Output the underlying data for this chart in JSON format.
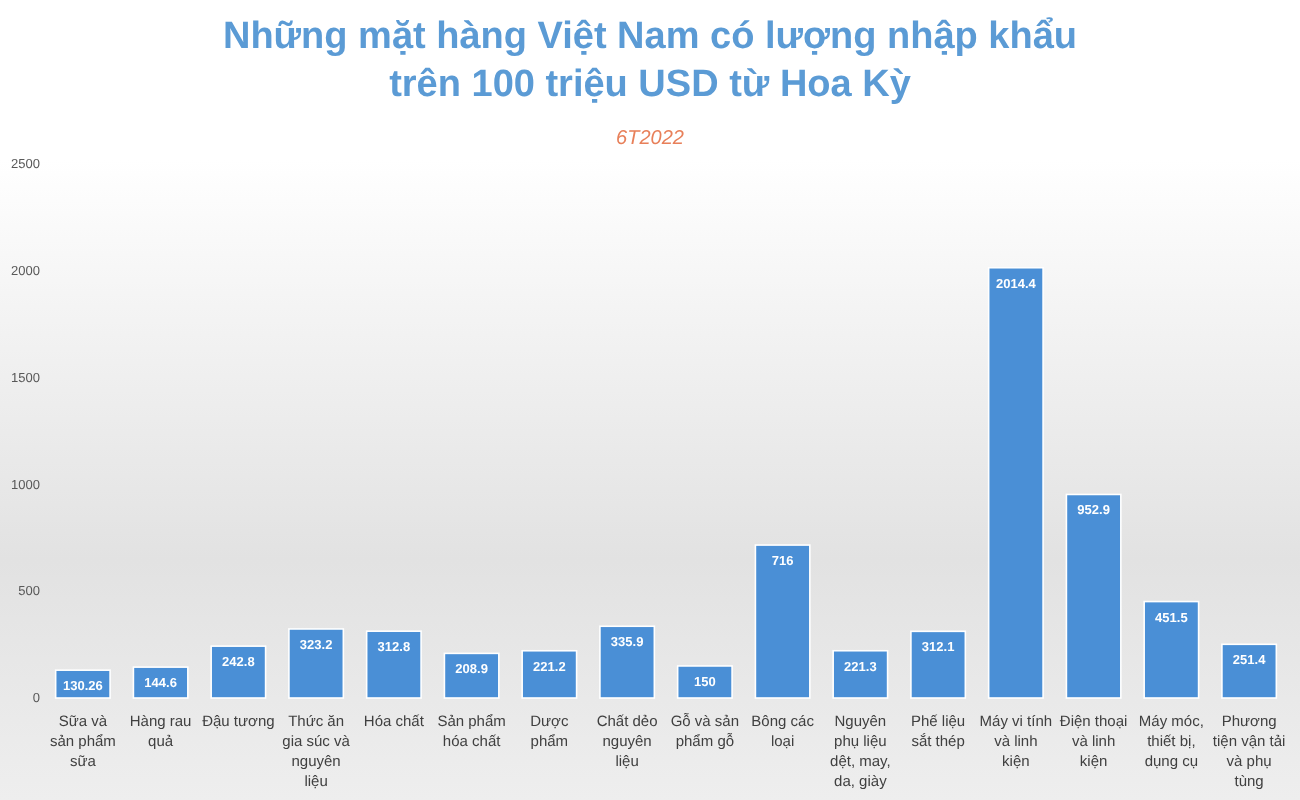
{
  "chart_data": {
    "type": "bar",
    "title": "Những mặt hàng Việt Nam có lượng nhập khẩu trên 100 triệu USD từ Hoa Kỳ",
    "subtitle": "6T2022",
    "categories": [
      "Sữa và sản phẩm sữa",
      "Hàng rau quả",
      "Đậu tương",
      "Thức ăn gia súc và nguyên liệu",
      "Hóa chất",
      "Sản phẩm hóa chất",
      "Dược phẩm",
      "Chất dẻo nguyên liệu",
      "Gỗ và sản phẩm gỗ",
      "Bông các loại",
      "Nguyên phụ liệu dệt, may, da, giày",
      "Phế liệu sắt thép",
      "Máy vi tính và linh kiện",
      "Điện thoại và linh kiện",
      "Máy móc, thiết bị, dụng cụ",
      "Phương tiện vận tải và phụ tùng"
    ],
    "values": [
      130.26,
      144.6,
      242.8,
      323.2,
      312.8,
      208.9,
      221.2,
      335.9,
      150,
      716,
      221.3,
      312.1,
      2014.4,
      952.9,
      451.5,
      251.4
    ],
    "color": "#4a8fd6",
    "ylim": [
      0,
      2500
    ],
    "yticks": [
      0,
      500,
      1000,
      1500,
      2000,
      2500
    ],
    "data_labels": true
  }
}
